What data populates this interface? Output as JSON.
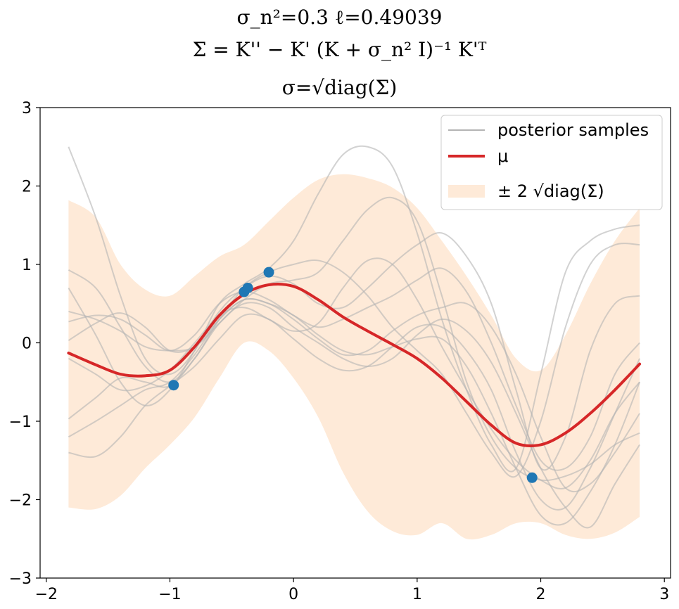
{
  "chart_data": {
    "type": "line",
    "title_lines": [
      "σ_n²=0.3   ℓ=0.49039",
      "Σ = K'' − K' (K + σ_n² I)⁻¹ K'ᵀ",
      "σ=√diag(Σ)"
    ],
    "xlim": [
      -2.05,
      3.05
    ],
    "ylim": [
      -3,
      3
    ],
    "xticks": [
      -2,
      -1,
      0,
      1,
      2,
      3
    ],
    "yticks": [
      -3,
      -2,
      -1,
      0,
      1,
      2,
      3
    ],
    "xtick_labels": [
      "−2",
      "−1",
      "0",
      "1",
      "2",
      "3"
    ],
    "ytick_labels": [
      "−3",
      "−2",
      "−1",
      "0",
      "1",
      "2",
      "3"
    ],
    "legend": {
      "position": "top-right",
      "samples_label": "posterior samples",
      "mean_label": "μ",
      "band_label": "± 2 √diag(Σ)"
    },
    "colors": {
      "samples": "#b4b4b4",
      "mean": "#d62728",
      "band": "#fdd8b8",
      "points": "#1f77b4"
    },
    "x": [
      -1.82,
      -1.6,
      -1.4,
      -1.2,
      -1.0,
      -0.8,
      -0.6,
      -0.4,
      -0.2,
      0.0,
      0.2,
      0.4,
      0.6,
      0.8,
      1.0,
      1.2,
      1.4,
      1.6,
      1.8,
      2.0,
      2.2,
      2.4,
      2.6,
      2.8
    ],
    "mean": [
      -0.13,
      -0.28,
      -0.4,
      -0.42,
      -0.35,
      -0.05,
      0.35,
      0.62,
      0.74,
      0.72,
      0.55,
      0.33,
      0.15,
      -0.02,
      -0.2,
      -0.45,
      -0.75,
      -1.05,
      -1.28,
      -1.3,
      -1.15,
      -0.9,
      -0.6,
      -0.27
    ],
    "upper": [
      1.82,
      1.6,
      1.0,
      0.68,
      0.6,
      0.85,
      1.1,
      1.25,
      1.55,
      1.85,
      2.08,
      2.15,
      2.1,
      1.98,
      1.72,
      1.3,
      0.85,
      0.35,
      -0.2,
      -0.35,
      0.1,
      0.75,
      1.3,
      1.72
    ],
    "lower": [
      -2.1,
      -2.12,
      -1.95,
      -1.6,
      -1.3,
      -0.95,
      -0.45,
      0.0,
      -0.1,
      -0.45,
      -0.95,
      -1.65,
      -2.15,
      -2.4,
      -2.45,
      -2.3,
      -2.5,
      -2.45,
      -2.3,
      -2.3,
      -2.45,
      -2.5,
      -2.42,
      -2.22
    ],
    "samples": [
      [
        2.5,
        1.6,
        0.6,
        -0.2,
        -0.4,
        -0.1,
        0.5,
        0.75,
        0.95,
        1.3,
        1.9,
        2.4,
        2.5,
        2.25,
        1.4,
        0.3,
        -0.6,
        -1.3,
        -1.6,
        -0.4,
        0.9,
        1.3,
        1.45,
        1.5
      ],
      [
        0.93,
        0.7,
        0.2,
        -0.3,
        -0.5,
        -0.2,
        0.3,
        0.7,
        0.9,
        1.0,
        1.05,
        0.9,
        0.6,
        0.2,
        -0.1,
        -0.4,
        -0.9,
        -1.4,
        -1.7,
        -1.0,
        0.2,
        1.0,
        1.25,
        1.25
      ],
      [
        0.7,
        0.1,
        -0.5,
        -0.8,
        -0.6,
        -0.1,
        0.4,
        0.7,
        0.85,
        0.75,
        0.5,
        0.45,
        0.7,
        1.0,
        1.25,
        1.4,
        1.1,
        0.5,
        -0.6,
        -1.6,
        -1.2,
        -0.1,
        0.5,
        0.6
      ],
      [
        0.4,
        0.3,
        0.15,
        -0.05,
        -0.1,
        -0.05,
        0.25,
        0.55,
        0.75,
        0.8,
        0.9,
        1.3,
        1.7,
        1.85,
        1.55,
        0.6,
        -0.5,
        -1.2,
        -1.6,
        -1.75,
        -1.7,
        -1.55,
        -1.3,
        -1.15
      ],
      [
        0.27,
        0.35,
        0.3,
        0.1,
        -0.1,
        0.1,
        0.5,
        0.65,
        0.55,
        0.35,
        0.2,
        0.3,
        0.45,
        0.6,
        0.8,
        0.95,
        0.65,
        0.0,
        -0.8,
        -1.5,
        -1.6,
        -1.2,
        -0.4,
        0.0
      ],
      [
        0.03,
        0.25,
        0.38,
        0.2,
        -0.1,
        -0.05,
        0.3,
        0.55,
        0.5,
        0.3,
        0.05,
        -0.15,
        -0.1,
        0.15,
        0.35,
        0.45,
        0.5,
        0.2,
        -0.4,
        -1.2,
        -1.85,
        -1.8,
        -1.4,
        -0.9
      ],
      [
        -0.2,
        -0.4,
        -0.6,
        -0.55,
        -0.35,
        0.0,
        0.35,
        0.45,
        0.3,
        0.15,
        0.25,
        0.7,
        1.05,
        1.0,
        0.55,
        -0.05,
        -0.6,
        -1.1,
        -1.5,
        -1.75,
        -1.85,
        -1.5,
        -0.9,
        -0.5
      ],
      [
        -0.97,
        -0.7,
        -0.45,
        -0.5,
        -0.55,
        -0.2,
        0.25,
        0.5,
        0.45,
        0.2,
        0.0,
        -0.2,
        -0.3,
        -0.2,
        0.1,
        0.3,
        0.15,
        -0.25,
        -0.9,
        -1.6,
        -2.1,
        -2.35,
        -1.8,
        -1.3
      ],
      [
        -1.2,
        -1.0,
        -0.8,
        -0.6,
        -0.5,
        -0.15,
        0.3,
        0.55,
        0.5,
        0.35,
        0.1,
        -0.1,
        -0.15,
        -0.05,
        0.05,
        0.05,
        -0.3,
        -0.9,
        -1.6,
        -2.2,
        -2.3,
        -1.9,
        -1.3,
        -0.5
      ],
      [
        -1.4,
        -1.45,
        -1.2,
        -0.8,
        -0.55,
        -0.3,
        0.05,
        0.35,
        0.3,
        0.05,
        -0.2,
        -0.35,
        -0.3,
        -0.05,
        0.2,
        0.2,
        -0.1,
        -0.6,
        -1.4,
        -2.0,
        -2.1,
        -1.6,
        -0.9,
        -0.2
      ]
    ],
    "points_x": [
      -0.97,
      -0.4,
      -0.37,
      -0.2,
      1.93
    ],
    "points_y": [
      -0.54,
      0.65,
      0.7,
      0.9,
      -1.72
    ]
  }
}
